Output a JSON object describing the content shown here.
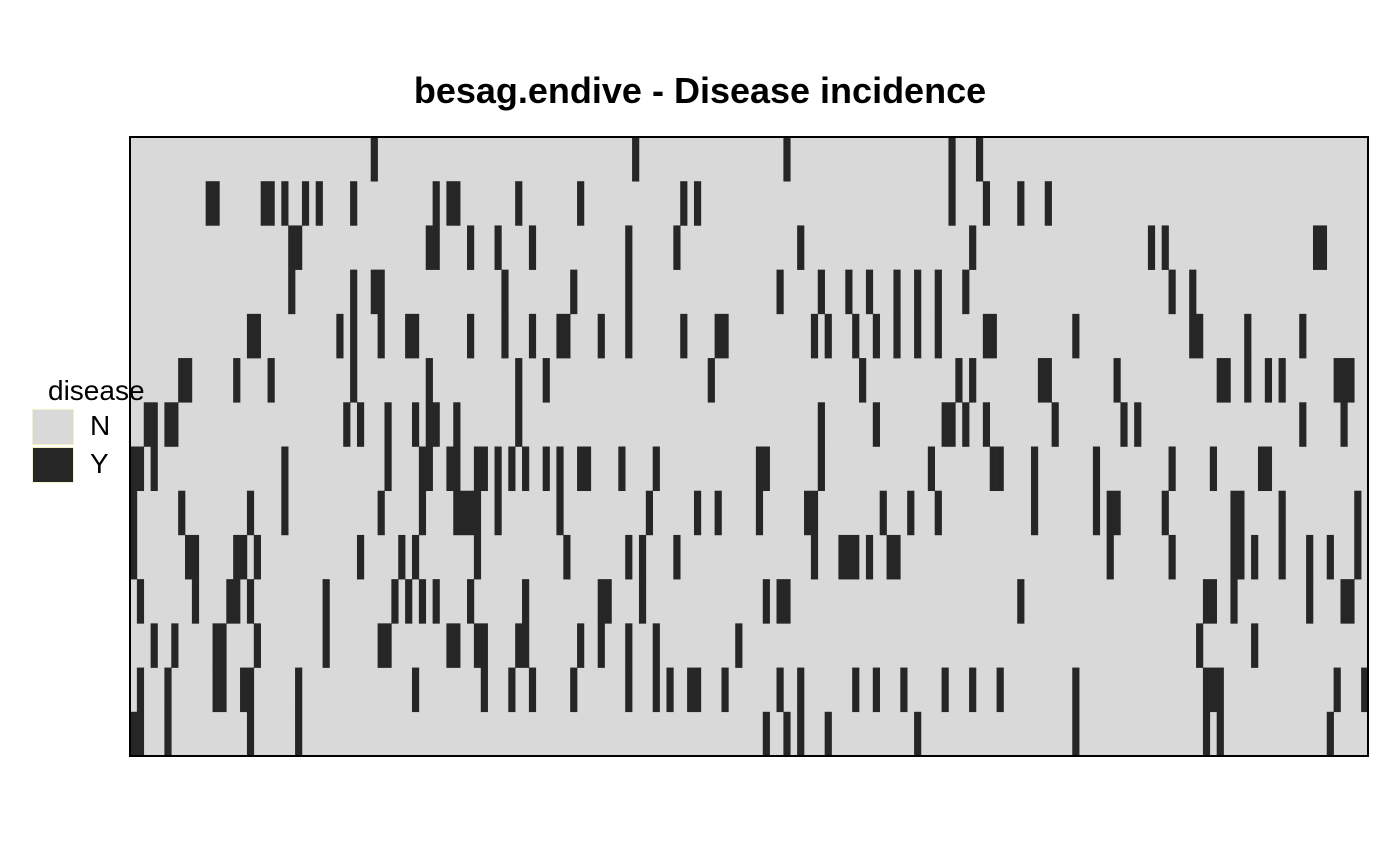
{
  "chart_data": {
    "type": "heatmap",
    "title": "besag.endive - Disease incidence",
    "xlabel": "",
    "ylabel": "",
    "n_rows": 14,
    "n_cols": 180,
    "legend": {
      "title": "disease",
      "placement": "left",
      "entries": [
        {
          "label": "N",
          "color": "#d9d9d9"
        },
        {
          "label": "Y",
          "color": "#262626"
        }
      ]
    },
    "diseased_cells": [
      [
        1,
        [
          35,
          73,
          95,
          119,
          123
        ]
      ],
      [
        2,
        [
          11,
          12,
          19,
          20,
          22,
          25,
          27,
          32,
          44,
          46,
          47,
          56,
          65,
          80,
          82,
          119,
          124,
          129,
          133
        ]
      ],
      [
        3,
        [
          23,
          24,
          43,
          44,
          49,
          53,
          58,
          72,
          79,
          97,
          122,
          148,
          150,
          172,
          173
        ]
      ],
      [
        4,
        [
          23,
          32,
          35,
          36,
          54,
          64,
          72,
          94,
          100,
          104,
          107,
          111,
          114,
          117,
          121,
          151,
          154
        ]
      ],
      [
        5,
        [
          17,
          18,
          30,
          32,
          36,
          40,
          41,
          49,
          54,
          58,
          62,
          63,
          68,
          72,
          80,
          85,
          86,
          99,
          101,
          105,
          108,
          111,
          114,
          117,
          124,
          125,
          137,
          154,
          155,
          162,
          170
        ]
      ],
      [
        6,
        [
          7,
          8,
          15,
          20,
          32,
          43,
          56,
          60,
          84,
          106,
          120,
          122,
          132,
          133,
          143,
          158,
          159,
          162,
          165,
          167,
          175,
          176,
          177
        ]
      ],
      [
        7,
        [
          2,
          3,
          5,
          6,
          31,
          33,
          37,
          41,
          43,
          44,
          47,
          56,
          100,
          108,
          118,
          119,
          121,
          124,
          134,
          144,
          146,
          170,
          176
        ]
      ],
      [
        8,
        [
          0,
          1,
          3,
          22,
          37,
          42,
          43,
          46,
          47,
          50,
          51,
          53,
          55,
          57,
          60,
          62,
          65,
          66,
          71,
          76,
          91,
          92,
          100,
          116,
          125,
          126,
          131,
          140,
          151,
          157,
          164,
          165
        ]
      ],
      [
        9,
        [
          0,
          7,
          17,
          22,
          36,
          42,
          47,
          48,
          49,
          50,
          53,
          62,
          75,
          82,
          85,
          91,
          98,
          99,
          109,
          113,
          117,
          131,
          140,
          142,
          143,
          150,
          160,
          161,
          167,
          178
        ]
      ],
      [
        10,
        [
          0,
          8,
          9,
          15,
          16,
          18,
          33,
          39,
          41,
          50,
          63,
          72,
          74,
          79,
          99,
          103,
          104,
          105,
          107,
          110,
          111,
          142,
          151,
          160,
          161,
          163,
          167,
          171,
          174,
          178
        ]
      ],
      [
        11,
        [
          1,
          9,
          14,
          15,
          17,
          28,
          38,
          40,
          42,
          44,
          49,
          57,
          68,
          69,
          74,
          92,
          94,
          95,
          129,
          156,
          157,
          160,
          171,
          176,
          177
        ]
      ],
      [
        12,
        [
          3,
          6,
          12,
          13,
          18,
          28,
          36,
          37,
          46,
          47,
          50,
          51,
          56,
          57,
          65,
          68,
          72,
          76,
          88,
          155,
          163
        ]
      ],
      [
        13,
        [
          1,
          5,
          12,
          13,
          16,
          17,
          24,
          41,
          51,
          55,
          58,
          64,
          72,
          76,
          78,
          81,
          82,
          86,
          94,
          97,
          105,
          108,
          112,
          118,
          122,
          126,
          137,
          156,
          157,
          158,
          175,
          179
        ]
      ],
      [
        14,
        [
          0,
          1,
          5,
          17,
          24,
          92,
          95,
          97,
          101,
          114,
          137,
          156,
          158,
          174
        ]
      ]
    ]
  }
}
